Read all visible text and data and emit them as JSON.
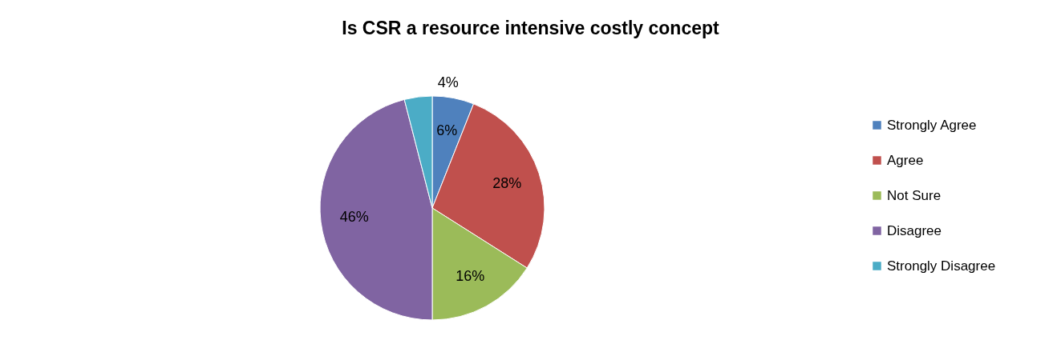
{
  "chart_data": {
    "type": "pie",
    "title": "Is CSR a resource intensive costly concept",
    "categories": [
      "Strongly Agree",
      "Agree",
      "Not Sure",
      "Disagree",
      "Strongly Disagree"
    ],
    "values": [
      6,
      28,
      16,
      46,
      4
    ],
    "colors": [
      "#4f81bd",
      "#c0504d",
      "#9bbb59",
      "#8064a2",
      "#4bacc6"
    ],
    "value_labels": [
      "6%",
      "28%",
      "16%",
      "46%",
      "4%"
    ],
    "legend": "right"
  }
}
